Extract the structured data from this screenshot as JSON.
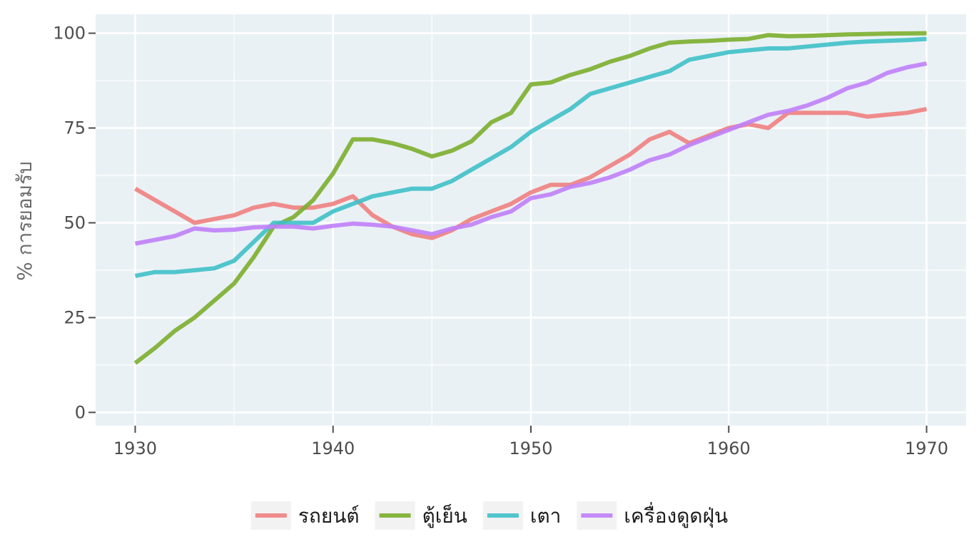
{
  "chart_data": {
    "type": "line",
    "title": "",
    "xlabel": "",
    "ylabel": "% การยอมรับ",
    "xlim": [
      1928,
      1972
    ],
    "ylim": [
      -3.5,
      105
    ],
    "x_ticks": [
      1930,
      1940,
      1950,
      1960,
      1970
    ],
    "y_ticks": [
      0,
      25,
      50,
      75,
      100
    ],
    "grid": true,
    "legend_position": "bottom",
    "x": [
      1930,
      1931,
      1932,
      1933,
      1934,
      1935,
      1936,
      1937,
      1938,
      1939,
      1940,
      1941,
      1942,
      1943,
      1944,
      1945,
      1946,
      1947,
      1948,
      1949,
      1950,
      1951,
      1952,
      1953,
      1954,
      1955,
      1956,
      1957,
      1958,
      1959,
      1960,
      1961,
      1962,
      1963,
      1964,
      1965,
      1966,
      1967,
      1968,
      1969,
      1970
    ],
    "series": [
      {
        "name": "รถยนต์",
        "color": "#f08080",
        "values": [
          59,
          56,
          53,
          50,
          51,
          52,
          54,
          55,
          54,
          54,
          55,
          57,
          52,
          49,
          47,
          46,
          48,
          51,
          53,
          55,
          58,
          60,
          60,
          62,
          65,
          68,
          72,
          74,
          71,
          73,
          75,
          76,
          75,
          79,
          79,
          79,
          79,
          78,
          78.5,
          79,
          80
        ]
      },
      {
        "name": "ตู้เย็น",
        "color": "#7cae2e",
        "values": [
          13,
          17,
          21.5,
          25,
          29.5,
          34,
          41,
          49,
          51.5,
          56,
          63,
          72,
          72,
          71,
          69.5,
          67.5,
          69,
          71.5,
          76.5,
          79,
          86.5,
          87,
          89,
          90.5,
          92.5,
          94,
          96,
          97.5,
          97.8,
          98,
          98.3,
          98.5,
          99.5,
          99.2,
          99.3,
          99.5,
          99.7,
          99.8,
          99.9,
          99.95,
          100
        ]
      },
      {
        "name": "เตา",
        "color": "#3fc0c8",
        "values": [
          36,
          37,
          37,
          37.5,
          38,
          40,
          45,
          50,
          50,
          50,
          53,
          55,
          57,
          58,
          59,
          59,
          61,
          64,
          67,
          70,
          74,
          77,
          80,
          84,
          85.5,
          87,
          88.5,
          90,
          93,
          94,
          95,
          95.5,
          96,
          96,
          96.5,
          97,
          97.5,
          97.8,
          98,
          98.2,
          98.5
        ]
      },
      {
        "name": "เครื่องดูดฝุ่น",
        "color": "#c080f8",
        "values": [
          44.5,
          45.5,
          46.5,
          48.5,
          48,
          48.2,
          48.8,
          49,
          49,
          48.5,
          49.2,
          49.8,
          49.5,
          49,
          48,
          47,
          48.5,
          49.5,
          51.5,
          53,
          56.5,
          57.5,
          59.5,
          60.5,
          62,
          64,
          66.5,
          68,
          70.5,
          72.5,
          74.5,
          76.5,
          78.5,
          79.5,
          81,
          83,
          85.5,
          87,
          89.5,
          91,
          92
        ]
      }
    ]
  }
}
